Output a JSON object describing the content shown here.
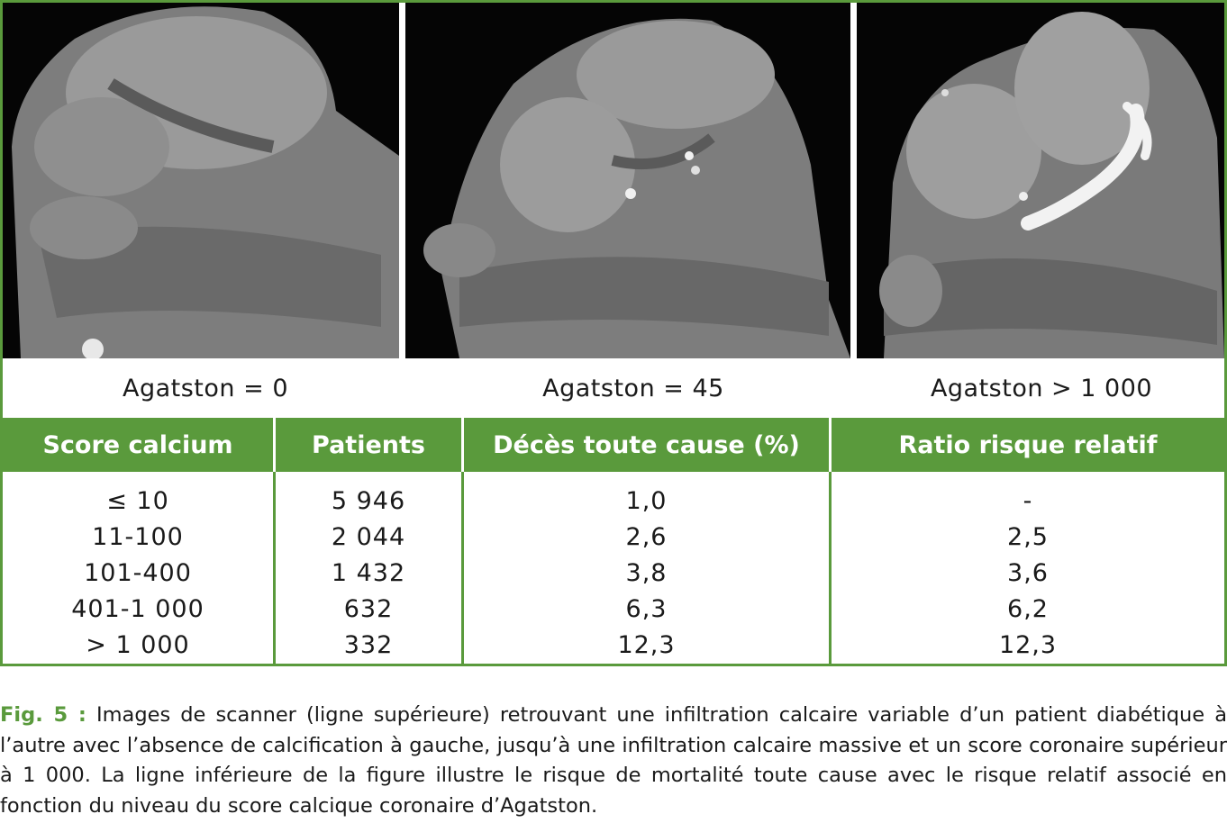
{
  "images": [
    {
      "caption": "Agatston = 0"
    },
    {
      "caption": "Agatston = 45"
    },
    {
      "caption": "Agatston > 1 000"
    }
  ],
  "table": {
    "headers": [
      "Score calcium",
      "Patients",
      "Décès toute cause (%)",
      "Ratio risque relatif"
    ],
    "rows": [
      [
        "≤ 10",
        "5 946",
        "1,0",
        "-"
      ],
      [
        "11-100",
        "2 044",
        "2,6",
        "2,5"
      ],
      [
        "101-400",
        "1 432",
        "3,8",
        "3,6"
      ],
      [
        "401-1 000",
        "632",
        "6,3",
        "6,2"
      ],
      [
        "> 1 000",
        "332",
        "12,3",
        "12,3"
      ]
    ]
  },
  "figure_caption": {
    "label": "Fig. 5 :",
    "text": "Images de scanner (ligne supérieure) retrouvant une infiltration calcaire variable d’un patient diabétique à l’autre avec l’absence de calcification à gauche, jusqu’à une infiltration calcaire massive et un score coronaire supérieur à 1 000. La ligne inférieure de la figure illustre le risque de mortalité toute cause avec le risque relatif associé en fonction du niveau du score calcique coronaire d’Agatston."
  },
  "colors": {
    "accent": "#5a9a3c",
    "header_text": "#ffffff"
  }
}
